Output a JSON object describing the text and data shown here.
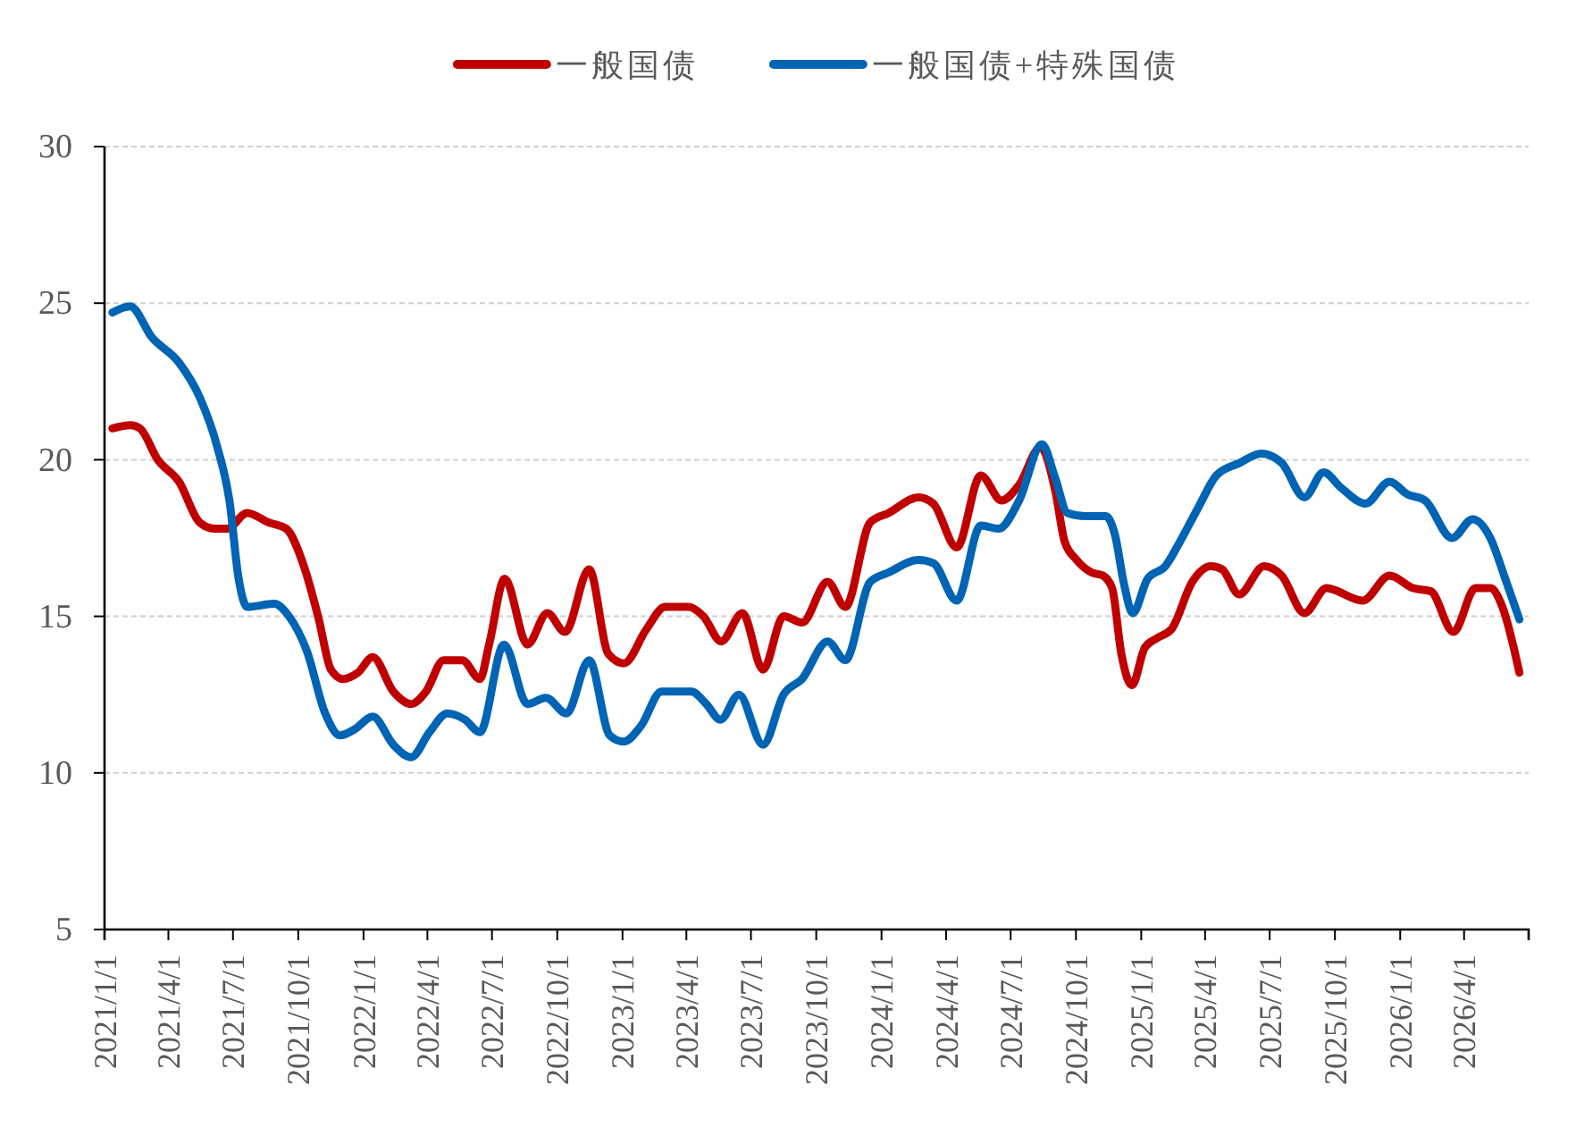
{
  "chart_data": {
    "type": "line",
    "legend": "top",
    "grid": "y",
    "line_style": "solid",
    "xlim": [
      "2021-01-01",
      "2026-07-01"
    ],
    "xticks": [
      {
        "value": "2021-01-01",
        "label": "2021/1/1"
      },
      {
        "value": "2021-04-01",
        "label": "2021/4/1"
      },
      {
        "value": "2021-07-01",
        "label": "2021/7/1"
      },
      {
        "value": "2021-10-01",
        "label": "2021/10/1"
      },
      {
        "value": "2022-01-01",
        "label": "2022/1/1"
      },
      {
        "value": "2022-04-01",
        "label": "2022/4/1"
      },
      {
        "value": "2022-07-01",
        "label": "2022/7/1"
      },
      {
        "value": "2022-10-01",
        "label": "2022/10/1"
      },
      {
        "value": "2023-01-01",
        "label": "2023/1/1"
      },
      {
        "value": "2023-04-01",
        "label": "2023/4/1"
      },
      {
        "value": "2023-07-01",
        "label": "2023/7/1"
      },
      {
        "value": "2023-10-01",
        "label": "2023/10/1"
      },
      {
        "value": "2024-01-01",
        "label": "2024/1/1"
      },
      {
        "value": "2024-04-01",
        "label": "2024/4/1"
      },
      {
        "value": "2024-07-01",
        "label": "2024/7/1"
      },
      {
        "value": "2024-10-01",
        "label": "2024/10/1"
      },
      {
        "value": "2025-01-01",
        "label": "2025/1/1"
      },
      {
        "value": "2025-04-01",
        "label": "2025/4/1"
      },
      {
        "value": "2025-07-01",
        "label": "2025/7/1"
      },
      {
        "value": "2025-10-01",
        "label": "2025/10/1"
      },
      {
        "value": "2026-01-01",
        "label": "2026/1/1"
      },
      {
        "value": "2026-04-01",
        "label": "2026/4/1"
      }
    ],
    "ylim": [
      5,
      30
    ],
    "yticks": [
      5,
      10,
      15,
      20,
      25,
      30
    ],
    "series": [
      {
        "name": "一般国债",
        "color": "#c00000",
        "x": [
          "2021-01-12",
          "2021-02-07",
          "2021-02-20",
          "2021-03-17",
          "2021-04-16",
          "2021-05-15",
          "2021-06-05",
          "2021-06-23",
          "2021-07-21",
          "2021-08-20",
          "2021-09-14",
          "2021-10-09",
          "2021-10-30",
          "2021-11-16",
          "2021-12-03",
          "2021-12-24",
          "2022-01-14",
          "2022-02-12",
          "2022-03-09",
          "2022-03-30",
          "2022-04-24",
          "2022-05-20",
          "2022-06-14",
          "2022-06-27",
          "2022-07-19",
          "2022-08-20",
          "2022-09-17",
          "2022-10-12",
          "2022-11-15",
          "2022-12-12",
          "2023-01-03",
          "2023-02-04",
          "2023-03-02",
          "2023-04-04",
          "2023-04-25",
          "2023-05-20",
          "2023-06-19",
          "2023-07-18",
          "2023-08-16",
          "2023-09-11",
          "2023-10-17",
          "2023-11-11",
          "2023-12-16",
          "2024-01-11",
          "2024-02-22",
          "2024-03-14",
          "2024-04-16",
          "2024-05-20",
          "2024-06-18",
          "2024-07-13",
          "2024-08-12",
          "2024-09-02",
          "2024-09-15",
          "2024-10-02",
          "2024-10-23",
          "2024-11-08",
          "2024-11-21",
          "2024-12-04",
          "2024-12-19",
          "2025-01-06",
          "2025-01-23",
          "2025-02-13",
          "2025-03-14",
          "2025-04-09",
          "2025-04-25",
          "2025-05-19",
          "2025-06-23",
          "2025-07-18",
          "2025-08-19",
          "2025-09-19",
          "2025-11-09",
          "2025-12-17",
          "2026-01-19",
          "2026-02-13",
          "2026-03-17",
          "2026-04-17",
          "2026-05-08",
          "2026-05-25",
          "2026-06-18"
        ],
        "values": [
          21.0,
          21.1,
          21.0,
          20.0,
          19.3,
          18.0,
          17.8,
          17.8,
          18.3,
          18.0,
          17.8,
          16.6,
          14.9,
          13.3,
          13.0,
          13.2,
          13.7,
          12.6,
          12.2,
          12.6,
          13.6,
          13.6,
          13.0,
          14.1,
          16.2,
          14.1,
          15.1,
          14.5,
          16.5,
          13.8,
          13.5,
          14.6,
          15.3,
          15.3,
          15.0,
          14.2,
          15.1,
          13.3,
          15.0,
          14.8,
          16.1,
          15.3,
          18.0,
          18.3,
          18.8,
          18.6,
          17.2,
          19.5,
          18.7,
          19.2,
          20.4,
          19.0,
          17.4,
          16.8,
          16.4,
          16.3,
          15.9,
          13.8,
          12.8,
          14.0,
          14.3,
          14.6,
          16.1,
          16.6,
          16.5,
          15.7,
          16.6,
          16.3,
          15.1,
          15.9,
          15.5,
          16.3,
          15.9,
          15.8,
          14.5,
          15.9,
          15.9,
          15.3,
          13.2
        ]
      },
      {
        "name": "一般国债+特殊国债",
        "color": "#0064b4",
        "x": [
          "2021-01-12",
          "2021-02-06",
          "2021-03-09",
          "2021-04-16",
          "2021-05-15",
          "2021-06-09",
          "2021-06-26",
          "2021-07-09",
          "2021-07-21",
          "2021-08-28",
          "2021-09-18",
          "2021-10-13",
          "2021-11-08",
          "2021-11-29",
          "2021-12-20",
          "2022-01-14",
          "2022-02-12",
          "2022-03-09",
          "2022-04-04",
          "2022-04-29",
          "2022-05-24",
          "2022-06-14",
          "2022-07-18",
          "2022-08-20",
          "2022-09-15",
          "2022-10-14",
          "2022-11-15",
          "2022-12-14",
          "2023-01-03",
          "2023-01-27",
          "2023-02-25",
          "2023-04-08",
          "2023-04-29",
          "2023-05-19",
          "2023-06-14",
          "2023-07-18",
          "2023-08-16",
          "2023-09-11",
          "2023-10-17",
          "2023-11-11",
          "2023-12-16",
          "2024-01-11",
          "2024-02-22",
          "2024-03-14",
          "2024-04-16",
          "2024-05-20",
          "2024-06-14",
          "2024-07-13",
          "2024-08-14",
          "2024-09-02",
          "2024-09-19",
          "2024-10-14",
          "2024-11-12",
          "2024-11-25",
          "2024-12-08",
          "2024-12-20",
          "2025-01-10",
          "2025-02-04",
          "2025-02-25",
          "2025-03-23",
          "2025-04-17",
          "2025-05-20",
          "2025-06-19",
          "2025-07-18",
          "2025-08-19",
          "2025-09-15",
          "2025-10-10",
          "2025-11-13",
          "2025-12-17",
          "2026-01-11",
          "2026-02-05",
          "2026-03-15",
          "2026-04-13",
          "2026-05-08",
          "2026-05-29",
          "2026-06-18"
        ],
        "values": [
          24.7,
          24.9,
          23.9,
          23.1,
          22.0,
          20.4,
          18.7,
          16.2,
          15.3,
          15.4,
          15.0,
          13.9,
          11.9,
          11.2,
          11.4,
          11.8,
          10.9,
          10.5,
          11.3,
          11.9,
          11.7,
          11.3,
          14.1,
          12.2,
          12.4,
          11.9,
          13.6,
          11.2,
          11.0,
          11.5,
          12.6,
          12.6,
          12.2,
          11.7,
          12.5,
          10.9,
          12.5,
          13.0,
          14.2,
          13.6,
          16.1,
          16.4,
          16.8,
          16.7,
          15.5,
          17.9,
          17.8,
          18.7,
          20.5,
          19.4,
          18.3,
          18.2,
          18.2,
          17.6,
          16.0,
          15.1,
          16.2,
          16.6,
          17.4,
          18.5,
          19.5,
          19.9,
          20.2,
          19.9,
          18.8,
          19.6,
          19.1,
          18.6,
          19.3,
          18.9,
          18.7,
          17.5,
          18.1,
          17.5,
          16.2,
          14.9
        ]
      }
    ]
  }
}
